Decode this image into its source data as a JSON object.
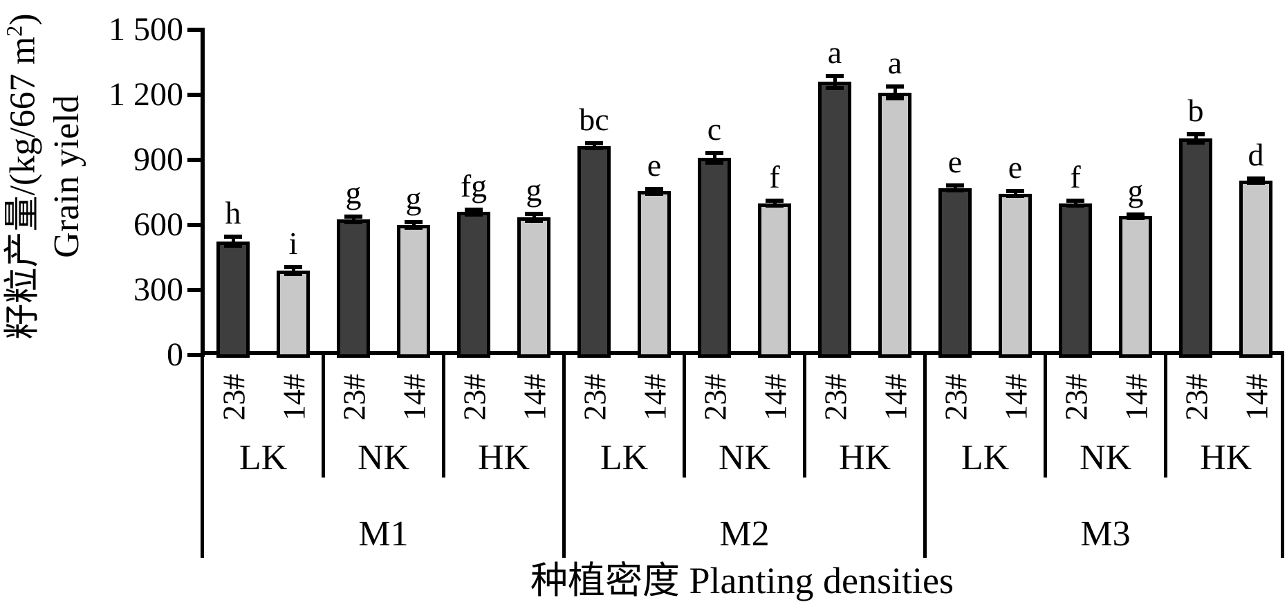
{
  "y_axis": {
    "title_zh_prefix": "籽粒产量/(kg/667 m",
    "title_sup": "2",
    "title_suffix": ")",
    "title_en": "Grain yield"
  },
  "x_axis": {
    "title": "种植密度  Planting densities"
  },
  "chart_data": {
    "type": "bar",
    "title": "",
    "ylabel": "籽粒产量/(kg/667 m²) Grain yield",
    "xlabel": "种植密度 Planting densities",
    "ylim": [
      0,
      1500
    ],
    "grid": false,
    "legend": "none",
    "ytick_values": [
      0,
      300,
      600,
      900,
      1200,
      1500
    ],
    "ytick_labels": [
      "0",
      "300",
      "600",
      "900",
      "1 200",
      "1 500"
    ],
    "groups": [
      "M1",
      "M2",
      "M3"
    ],
    "subgroups": [
      "LK",
      "NK",
      "HK"
    ],
    "series": [
      {
        "name": "23#",
        "color": "#3e3e3e"
      },
      {
        "name": "14#",
        "color": "#c8c8c8"
      }
    ],
    "bars": [
      {
        "group": "M1",
        "subgroup": "LK",
        "series": "23#",
        "value": 525,
        "error": 25,
        "letter": "h"
      },
      {
        "group": "M1",
        "subgroup": "LK",
        "series": "14#",
        "value": 390,
        "error": 20,
        "letter": "i"
      },
      {
        "group": "M1",
        "subgroup": "NK",
        "series": "23#",
        "value": 625,
        "error": 15,
        "letter": "g"
      },
      {
        "group": "M1",
        "subgroup": "NK",
        "series": "14#",
        "value": 600,
        "error": 15,
        "letter": "g"
      },
      {
        "group": "M1",
        "subgroup": "HK",
        "series": "23#",
        "value": 660,
        "error": 15,
        "letter": "fg"
      },
      {
        "group": "M1",
        "subgroup": "HK",
        "series": "14#",
        "value": 635,
        "error": 20,
        "letter": "g"
      },
      {
        "group": "M2",
        "subgroup": "LK",
        "series": "23#",
        "value": 965,
        "error": 15,
        "letter": "bc"
      },
      {
        "group": "M2",
        "subgroup": "LK",
        "series": "14#",
        "value": 755,
        "error": 15,
        "letter": "e"
      },
      {
        "group": "M2",
        "subgroup": "NK",
        "series": "23#",
        "value": 910,
        "error": 25,
        "letter": "c"
      },
      {
        "group": "M2",
        "subgroup": "NK",
        "series": "14#",
        "value": 700,
        "error": 15,
        "letter": "f"
      },
      {
        "group": "M2",
        "subgroup": "HK",
        "series": "23#",
        "value": 1260,
        "error": 30,
        "letter": "a"
      },
      {
        "group": "M2",
        "subgroup": "HK",
        "series": "14#",
        "value": 1210,
        "error": 30,
        "letter": "a"
      },
      {
        "group": "M3",
        "subgroup": "LK",
        "series": "23#",
        "value": 770,
        "error": 15,
        "letter": "e"
      },
      {
        "group": "M3",
        "subgroup": "LK",
        "series": "14#",
        "value": 745,
        "error": 15,
        "letter": "e"
      },
      {
        "group": "M3",
        "subgroup": "NK",
        "series": "23#",
        "value": 700,
        "error": 15,
        "letter": "f"
      },
      {
        "group": "M3",
        "subgroup": "NK",
        "series": "14#",
        "value": 640,
        "error": 12,
        "letter": "g"
      },
      {
        "group": "M3",
        "subgroup": "HK",
        "series": "23#",
        "value": 1000,
        "error": 22,
        "letter": "b"
      },
      {
        "group": "M3",
        "subgroup": "HK",
        "series": "14#",
        "value": 805,
        "error": 12,
        "letter": "d"
      }
    ]
  }
}
